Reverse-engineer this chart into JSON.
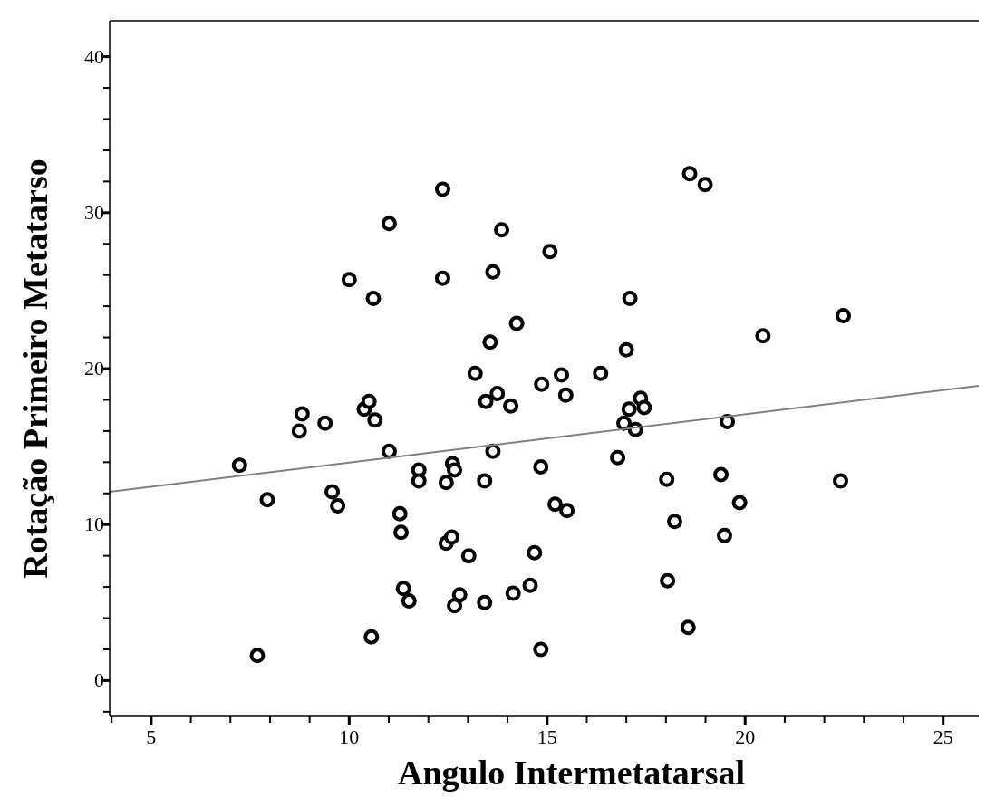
{
  "chart_data": {
    "type": "scatter",
    "xlabel": "Angulo Intermetatarsal",
    "ylabel": "Rotação Primeiro Metatarso",
    "xlim": [
      3.95,
      25.9
    ],
    "ylim": [
      -2.3,
      42.3
    ],
    "xticks": [
      {
        "value": 4,
        "label": null
      },
      5,
      {
        "value": 6,
        "label": null
      },
      {
        "value": 7,
        "label": null
      },
      {
        "value": 8,
        "label": null
      },
      {
        "value": 9,
        "label": null
      },
      10,
      {
        "value": 11,
        "label": null
      },
      {
        "value": 12,
        "label": null
      },
      {
        "value": 13,
        "label": null
      },
      {
        "value": 14,
        "label": null
      },
      15,
      {
        "value": 16,
        "label": null
      },
      {
        "value": 17,
        "label": null
      },
      {
        "value": 18,
        "label": null
      },
      {
        "value": 19,
        "label": null
      },
      20,
      {
        "value": 21,
        "label": null
      },
      {
        "value": 22,
        "label": null
      },
      {
        "value": 23,
        "label": null
      },
      {
        "value": 24,
        "label": null
      },
      25
    ],
    "yticks": [
      {
        "value": -2,
        "label": null
      },
      0,
      {
        "value": 2,
        "label": null
      },
      {
        "value": 4,
        "label": null
      },
      {
        "value": 6,
        "label": null
      },
      {
        "value": 8,
        "label": null
      },
      10,
      {
        "value": 12,
        "label": null
      },
      {
        "value": 14,
        "label": null
      },
      {
        "value": 16,
        "label": null
      },
      {
        "value": 18,
        "label": null
      },
      20,
      {
        "value": 22,
        "label": null
      },
      {
        "value": 24,
        "label": null
      },
      {
        "value": 26,
        "label": null
      },
      {
        "value": 28,
        "label": null
      },
      30,
      {
        "value": 32,
        "label": null
      },
      {
        "value": 34,
        "label": null
      },
      {
        "value": 36,
        "label": null
      },
      {
        "value": 38,
        "label": null
      },
      40
    ],
    "grid": false,
    "series": [
      {
        "marker": "circle",
        "color": "#000000",
        "x": [
          7.23,
          7.68,
          7.93,
          8.74,
          8.81,
          9.39,
          9.57,
          9.71,
          10.0,
          10.38,
          10.5,
          10.56,
          10.61,
          10.65,
          11.01,
          11.01,
          11.28,
          11.31,
          11.37,
          11.51,
          11.76,
          11.76,
          12.36,
          12.36,
          12.45,
          12.45,
          12.59,
          12.61,
          12.66,
          12.66,
          12.79,
          13.02,
          13.18,
          13.42,
          13.42,
          13.45,
          13.56,
          13.63,
          13.63,
          13.74,
          13.85,
          14.08,
          14.14,
          14.23,
          14.57,
          14.68,
          14.84,
          14.84,
          14.86,
          15.07,
          15.2,
          15.36,
          15.47,
          15.5,
          16.35,
          16.78,
          16.94,
          17.0,
          17.07,
          17.09,
          17.23,
          17.36,
          17.45,
          18.02,
          18.04,
          18.22,
          18.56,
          18.6,
          18.99,
          19.39,
          19.48,
          19.55,
          19.86,
          20.45,
          22.41,
          22.48
        ],
        "values": [
          13.8,
          1.6,
          11.6,
          16.0,
          17.1,
          16.5,
          12.1,
          11.2,
          25.7,
          17.4,
          17.9,
          2.8,
          24.5,
          16.7,
          14.7,
          29.3,
          10.7,
          9.5,
          5.9,
          5.1,
          13.5,
          12.8,
          31.5,
          25.8,
          12.7,
          8.8,
          9.2,
          13.9,
          13.5,
          4.8,
          5.5,
          8.0,
          19.7,
          12.8,
          5.0,
          17.9,
          21.7,
          26.2,
          14.7,
          18.4,
          28.9,
          17.6,
          5.6,
          22.9,
          6.1,
          8.2,
          2.0,
          13.7,
          19.0,
          27.5,
          11.3,
          19.6,
          18.3,
          10.9,
          19.7,
          14.3,
          16.5,
          21.2,
          17.4,
          24.5,
          16.1,
          18.1,
          17.5,
          12.9,
          6.4,
          10.2,
          3.4,
          32.5,
          31.8,
          13.2,
          9.3,
          16.6,
          11.4,
          22.1,
          12.8,
          23.4
        ]
      },
      {
        "type": "line",
        "color": "#808080",
        "x": [
          3.95,
          25.9
        ],
        "values": [
          12.1,
          18.9
        ]
      }
    ]
  }
}
